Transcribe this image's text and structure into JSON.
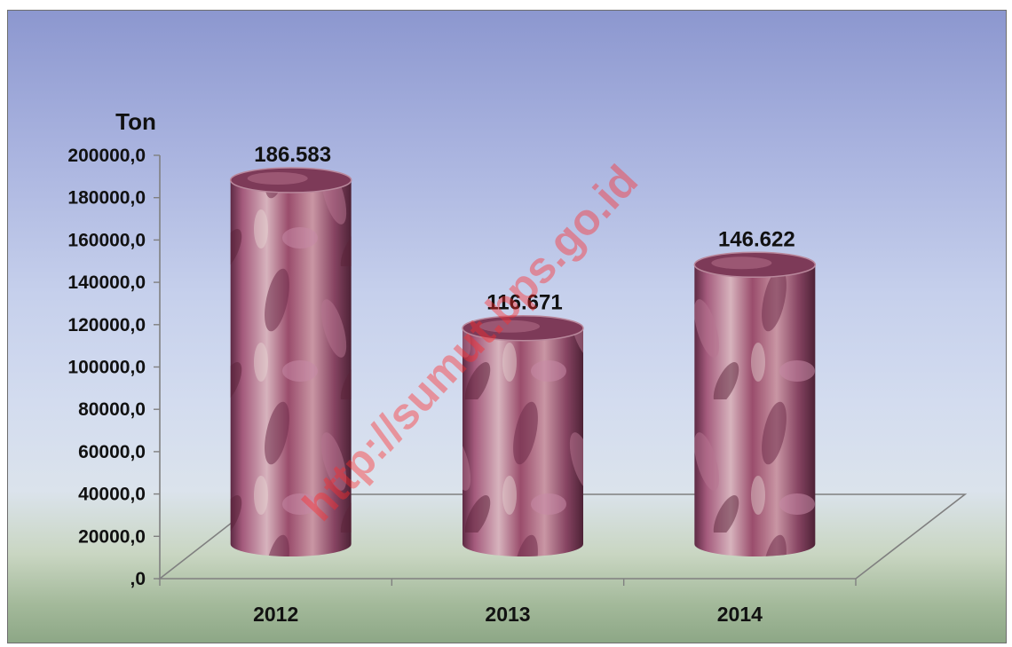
{
  "chart_data": {
    "type": "bar",
    "style": "3d-cylinder",
    "categories": [
      "2012",
      "2013",
      "2014"
    ],
    "values": [
      186583,
      116671,
      146622
    ],
    "data_labels": [
      "186.583",
      "116.671",
      "146.622"
    ],
    "y_unit_label": "Ton",
    "ylim": [
      0,
      200000
    ],
    "y_ticks": [
      0,
      20000,
      40000,
      60000,
      80000,
      100000,
      120000,
      140000,
      160000,
      180000,
      200000
    ],
    "y_tick_labels": [
      ",0",
      "20000,0",
      "40000,0",
      "60000,0",
      "80000,0",
      "100000,0",
      "120000,0",
      "140000,0",
      "160000,0",
      "180000,0",
      "200000,0"
    ],
    "grid": false,
    "legend": "none",
    "title": "",
    "xlabel": "",
    "ylabel": ""
  },
  "watermark": "http://sumut.bps.go.id",
  "colors": {
    "background_top": "#8c97cf",
    "background_bottom": "#8da786",
    "bar_fill": "#8e4a68",
    "watermark": "#ff2a2a"
  }
}
